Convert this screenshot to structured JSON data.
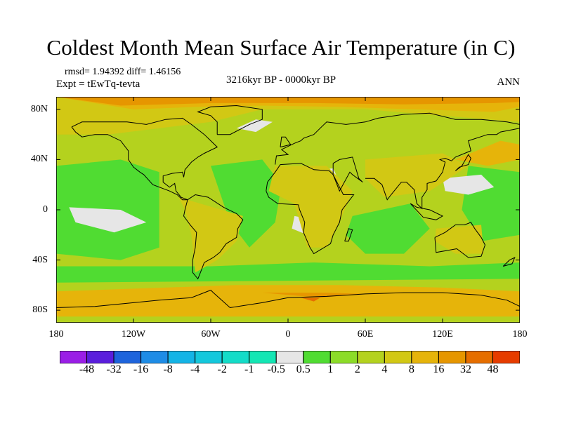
{
  "title": "Coldest Month Mean Surface Air Temperature (in C)",
  "stats": "rmsd= 1.94392 diff= 1.46156",
  "experiment": "Expt = tEwTq-tevta",
  "period": "3216kyr BP - 0000kyr BP",
  "season": "ANN",
  "lat_labels": [
    {
      "text": "80N",
      "lat": 80
    },
    {
      "text": "40N",
      "lat": 40
    },
    {
      "text": "0",
      "lat": 0
    },
    {
      "text": "40S",
      "lat": -40
    },
    {
      "text": "80S",
      "lat": -80
    }
  ],
  "lon_labels": [
    {
      "text": "180",
      "lon": -180
    },
    {
      "text": "120W",
      "lon": -120
    },
    {
      "text": "60W",
      "lon": -60
    },
    {
      "text": "0",
      "lon": 0
    },
    {
      "text": "60E",
      "lon": 60
    },
    {
      "text": "120E",
      "lon": 120
    },
    {
      "text": "180",
      "lon": 180
    }
  ],
  "colorbar": {
    "labels": [
      "-48",
      "-32",
      "-16",
      "-8",
      "-4",
      "-2",
      "-1",
      "-0.5",
      "0.5",
      "1",
      "2",
      "4",
      "8",
      "16",
      "32",
      "48"
    ],
    "colors": [
      "#9a1ee6",
      "#5a1edc",
      "#1e64dc",
      "#1e8ce6",
      "#14b4e6",
      "#14c8dc",
      "#14dcc8",
      "#14e6b4",
      "#e6e6e6",
      "#50dc32",
      "#8cdc28",
      "#b4d21e",
      "#d2c814",
      "#e6b40a",
      "#e69600",
      "#e66e00",
      "#e63c00"
    ]
  },
  "map_fields": {
    "background": "#b4d21e",
    "ocean_color": "#50dc32",
    "warm_color": "#d2c814",
    "warmer_color": "#e6b40a",
    "hot_color": "#e69600",
    "hottest_color": "#e66e00",
    "neutral_color": "#e6e6e6",
    "cool_color": "#14c8dc",
    "cold_color": "#1e8ce6",
    "coast_color": "#000000"
  }
}
